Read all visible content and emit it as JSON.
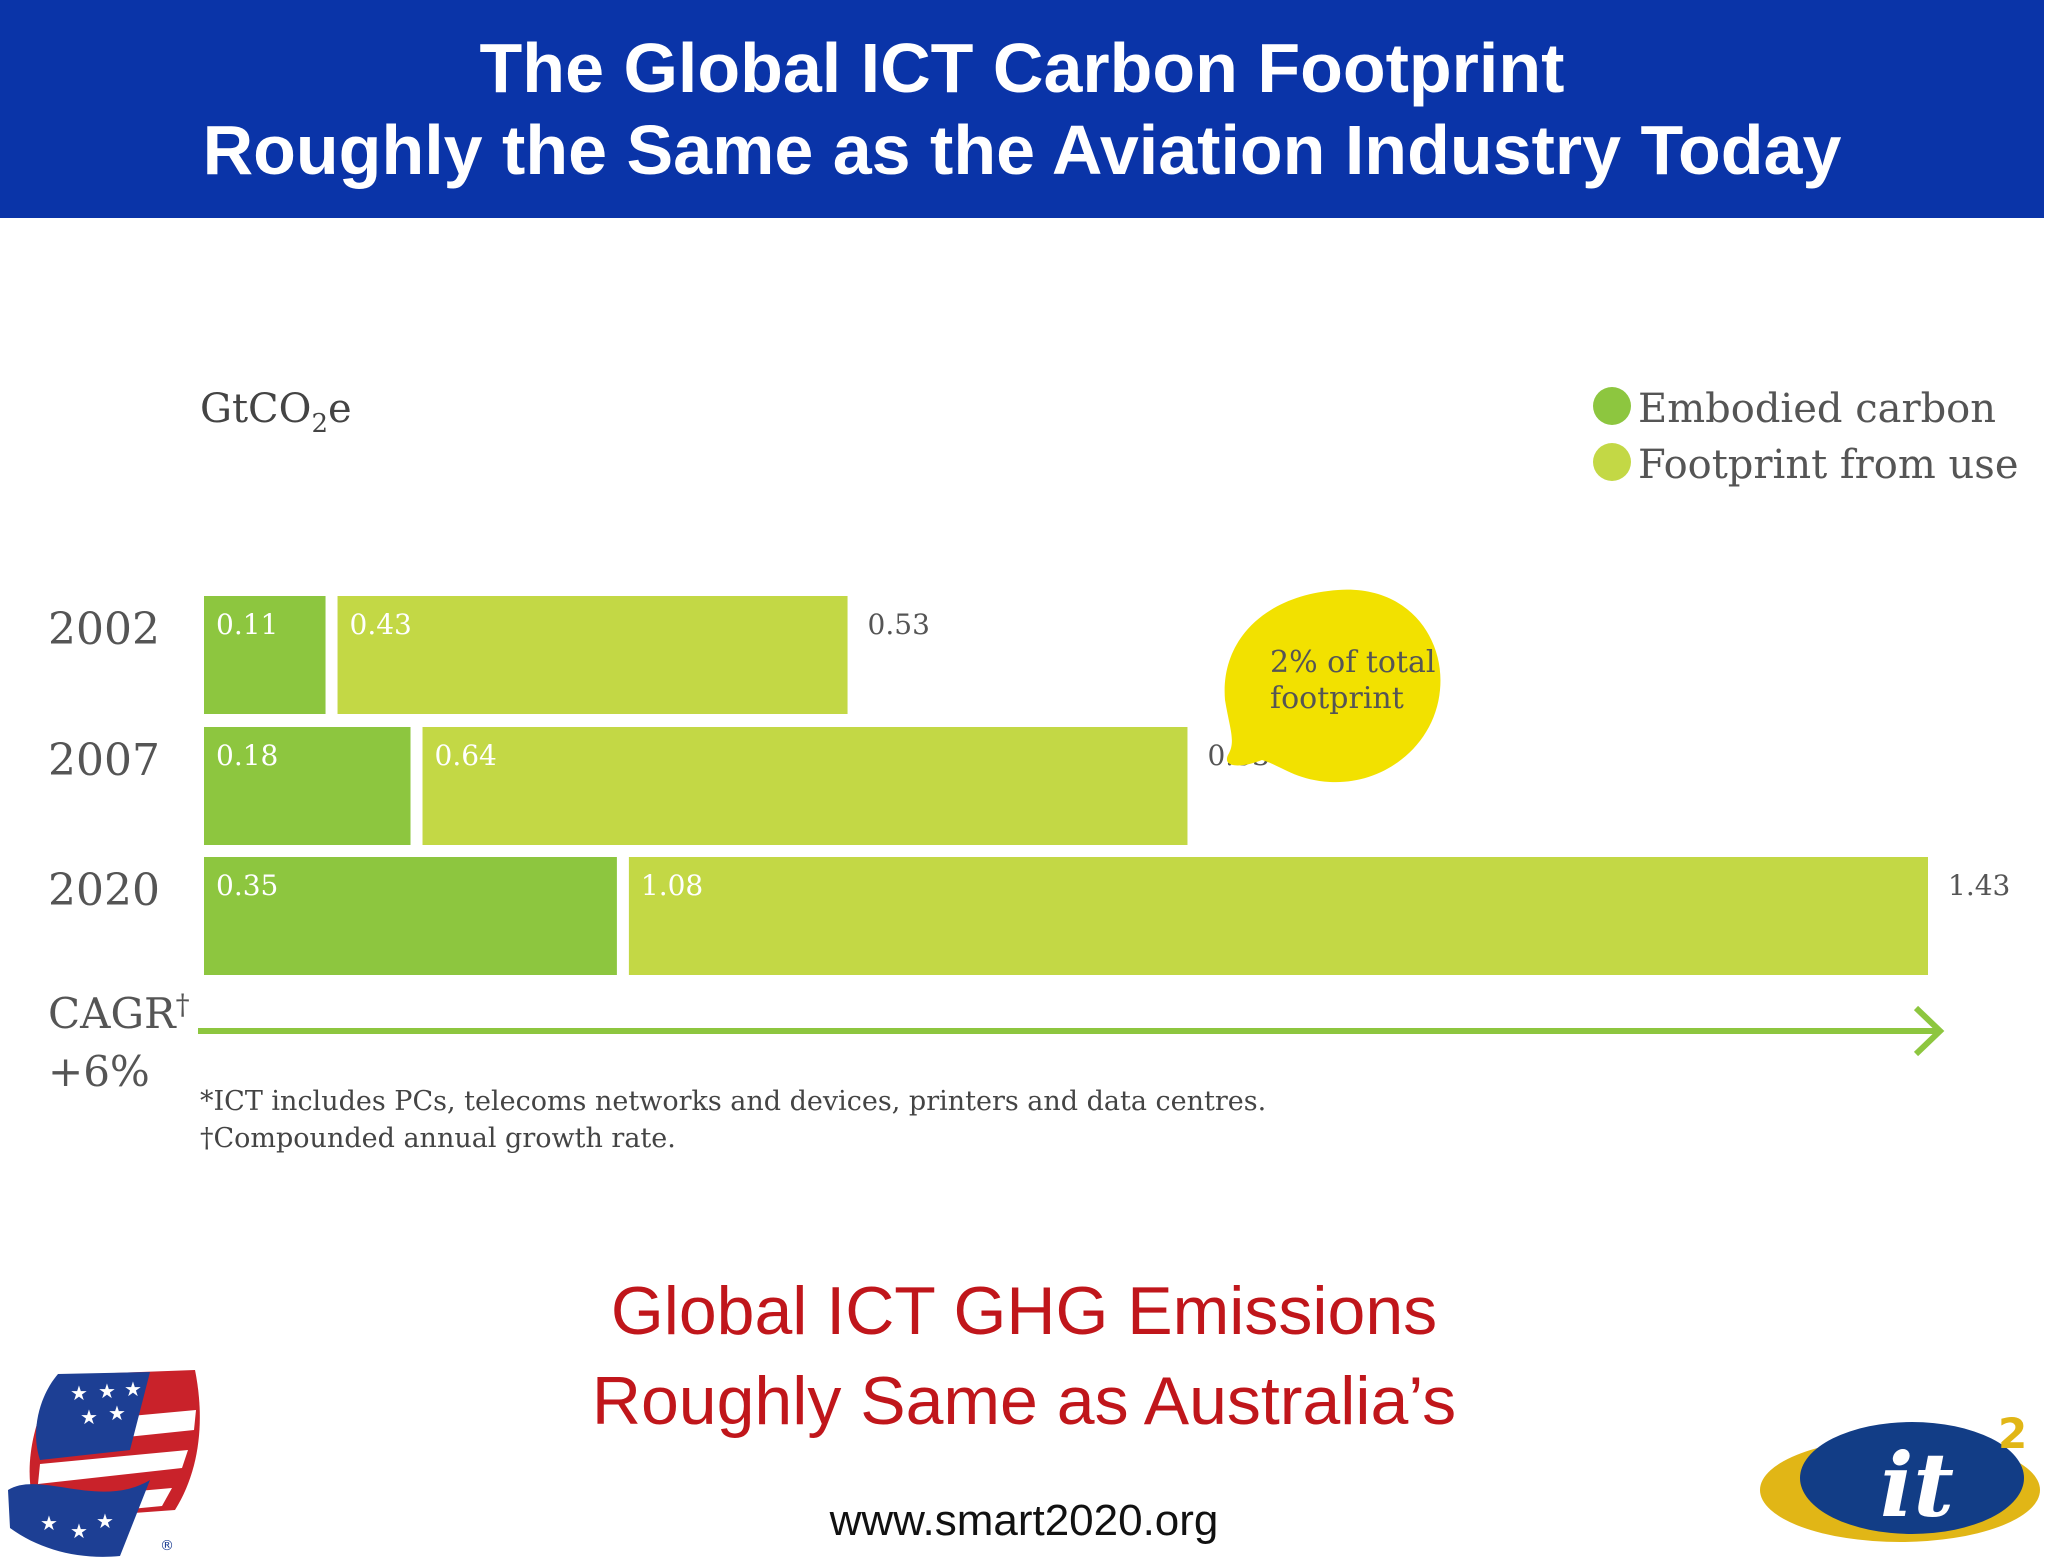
{
  "header": {
    "line1": "The Global ICT Carbon Footprint",
    "line2": "Roughly the Same as the Aviation Industry Today"
  },
  "chart_data": {
    "type": "bar",
    "orientation": "horizontal",
    "stacked": true,
    "unit_label_main": "GtCO",
    "unit_label_sub": "2",
    "unit_label_suffix": "e",
    "categories": [
      "2002",
      "2007",
      "2020"
    ],
    "series": [
      {
        "name": "Embodied carbon",
        "values": [
          0.11,
          0.18,
          0.35
        ],
        "color": "#8dc63f"
      },
      {
        "name": "Footprint from use",
        "values": [
          0.43,
          0.64,
          1.08
        ],
        "color": "#c3d845"
      }
    ],
    "totals": [
      "0.53",
      "0.83",
      "1.43"
    ],
    "segment_labels": [
      [
        "0.11",
        "0.43"
      ],
      [
        "0.18",
        "0.64"
      ],
      [
        "0.35",
        "1.08"
      ]
    ],
    "xlim": [
      0,
      1.43
    ],
    "legend_position": "top-right",
    "annotation": {
      "line1": "2% of total",
      "line2": "footprint",
      "color": "#f2e100"
    },
    "cagr": {
      "label": "CAGR",
      "mark": "†",
      "value": "+6%",
      "arrow_color": "#8dc63f"
    },
    "footnotes": [
      "*ICT includes PCs, telecoms networks and devices, printers and data centres.",
      "†Compounded annual growth rate."
    ]
  },
  "subtitle": {
    "line1": "Global ICT GHG Emissions",
    "line2": "Roughly Same as Australia’s"
  },
  "source": "www.smart2020.org",
  "logos": {
    "left": "flag-ribbon-logo",
    "right": "it2-logo",
    "right_text": "it",
    "right_sup": "2",
    "registered": "®"
  }
}
